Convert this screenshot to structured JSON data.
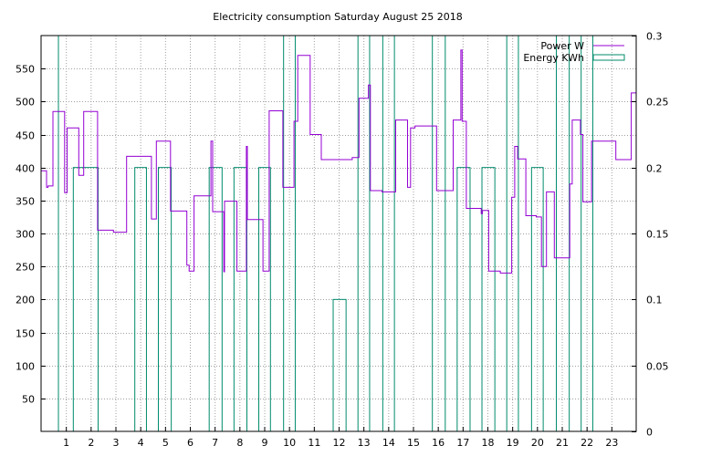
{
  "chart_data": {
    "type": "line",
    "title": "Electricity consumption Saturday August 25 2018",
    "xlabel": "",
    "ylabel": "",
    "xlim": [
      0,
      24
    ],
    "ylim": [
      0,
      600
    ],
    "y2lim": [
      0,
      0.3
    ],
    "x_ticks": [
      1,
      2,
      3,
      4,
      5,
      6,
      7,
      8,
      9,
      10,
      11,
      12,
      13,
      14,
      15,
      16,
      17,
      18,
      19,
      20,
      21,
      22,
      23
    ],
    "y_ticks": [
      50,
      100,
      150,
      200,
      250,
      300,
      350,
      400,
      450,
      500,
      550
    ],
    "y2_ticks": [
      {
        "v": 0,
        "label": "0"
      },
      {
        "v": 0.05,
        "label": "0.05"
      },
      {
        "v": 0.1,
        "label": "0.1"
      },
      {
        "v": 0.15,
        "label": "0.15"
      },
      {
        "v": 0.2,
        "label": "0.2"
      },
      {
        "v": 0.25,
        "label": "0.25"
      },
      {
        "v": 0.3,
        "label": "0.3"
      }
    ],
    "grid": true,
    "legend_position": "top-right",
    "series": [
      {
        "name": "Power W",
        "axis": "y",
        "style": "step",
        "color": "#9400d3",
        "x": [
          0,
          0.22,
          0.28,
          0.48,
          0.95,
          1.05,
          1.12,
          1.52,
          1.72,
          2.28,
          2.35,
          2.92,
          3.45,
          3.9,
          4.45,
          4.65,
          5.22,
          5.88,
          5.97,
          6.17,
          6.85,
          6.92,
          7.37,
          7.4,
          7.9,
          8.02,
          8.28,
          8.32,
          8.95,
          9.2,
          9.75,
          9.8,
          10.2,
          10.35,
          10.85,
          11.3,
          12.55,
          12.68,
          12.82,
          13.2,
          13.28,
          13.75,
          14.3,
          14.78,
          14.9,
          15.08,
          15.95,
          16.62,
          16.93,
          16.98,
          17.15,
          17.75,
          17.8,
          18.05,
          18.52,
          18.98,
          19.1,
          19.22,
          19.55,
          19.97,
          20.18,
          20.38,
          20.7,
          21.32,
          21.42,
          21.75,
          21.85,
          22.2,
          22.38,
          23.18,
          23.72,
          23.8
        ],
        "y": [
          395,
          370,
          372,
          485,
          362,
          460,
          460,
          388,
          485,
          305,
          305,
          302,
          417,
          417,
          322,
          440,
          334,
          252,
          243,
          357,
          440,
          333,
          242,
          349,
          243,
          243,
          432,
          321,
          243,
          486,
          370,
          370,
          470,
          570,
          450,
          412,
          415,
          415,
          505,
          525,
          365,
          363,
          472,
          370,
          460,
          463,
          365,
          472,
          578,
          470,
          338,
          330,
          335,
          243,
          240,
          355,
          432,
          413,
          327,
          325,
          250,
          363,
          263,
          375,
          472,
          450,
          348,
          440,
          440,
          412,
          412,
          513
        ]
      },
      {
        "name": "Energy KWh",
        "axis": "y2",
        "style": "impulse-bars",
        "color": "#008b6b",
        "bars": [
          [
            0.0,
            0.7,
            0.3
          ],
          [
            1.3,
            2.3,
            0.2
          ],
          [
            3.78,
            4.25,
            0.2
          ],
          [
            4.73,
            5.25,
            0.2
          ],
          [
            6.78,
            7.3,
            0.2
          ],
          [
            7.78,
            8.3,
            0.2
          ],
          [
            8.78,
            9.25,
            0.2
          ],
          [
            9.78,
            10.25,
            0.3
          ],
          [
            11.78,
            12.3,
            0.1
          ],
          [
            12.78,
            13.25,
            0.3
          ],
          [
            13.78,
            14.25,
            0.3
          ],
          [
            15.78,
            16.3,
            0.3
          ],
          [
            16.78,
            17.3,
            0.2
          ],
          [
            17.78,
            18.3,
            0.2
          ],
          [
            18.78,
            19.25,
            0.3
          ],
          [
            19.78,
            20.25,
            0.2
          ],
          [
            20.78,
            21.3,
            0.3
          ],
          [
            21.78,
            22.25,
            0.3
          ]
        ]
      }
    ]
  }
}
